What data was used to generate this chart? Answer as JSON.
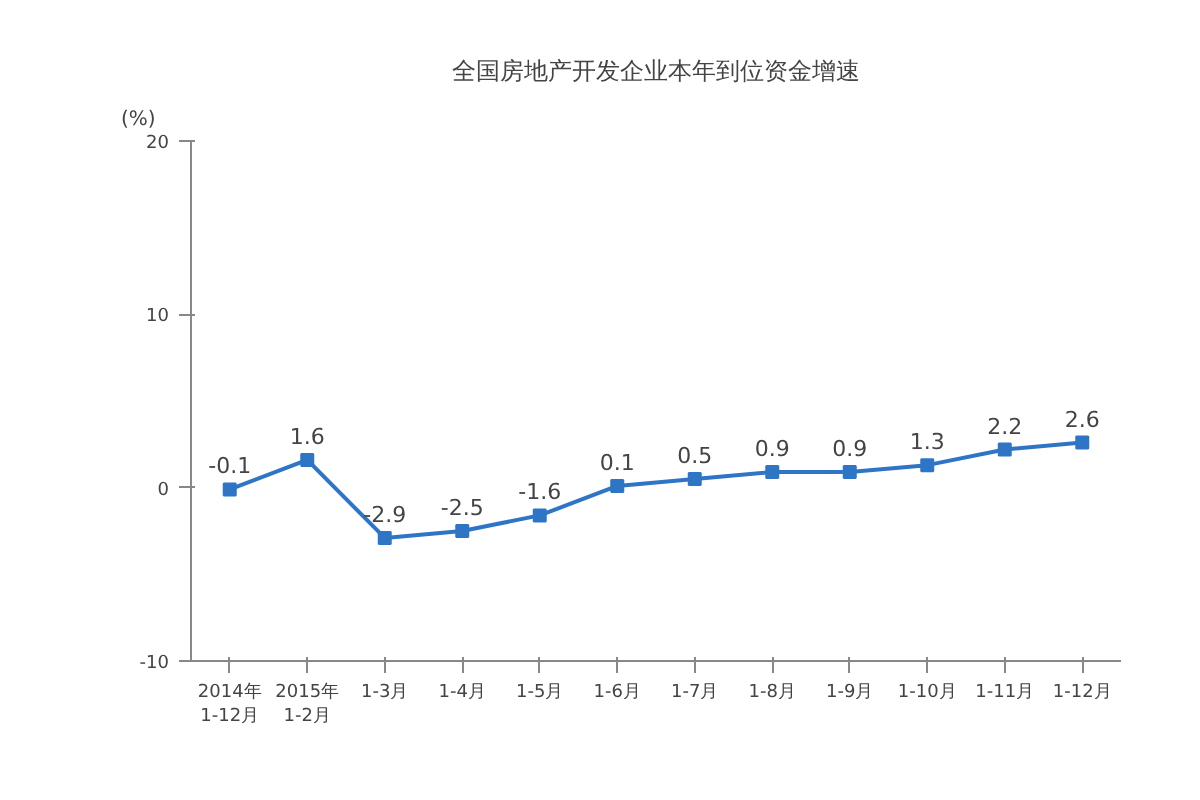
{
  "chart_data": {
    "type": "line",
    "title": "全国房地产开发企业本年到位资金增速",
    "ylabel": "(%)",
    "categories": [
      "2014年\n1-12月",
      "2015年\n1-2月",
      "1-3月",
      "1-4月",
      "1-5月",
      "1-6月",
      "1-7月",
      "1-8月",
      "1-9月",
      "1-10月",
      "1-11月",
      "1-12月"
    ],
    "series": [
      {
        "color": "#2e75c6",
        "values": [
          -0.1,
          1.6,
          -2.9,
          -2.5,
          -1.6,
          0.1,
          0.5,
          0.9,
          0.9,
          1.3,
          2.2,
          2.6
        ]
      }
    ],
    "ylim": [
      -10,
      20
    ],
    "yticks": [
      -10,
      0,
      10,
      20
    ],
    "grid": false,
    "marker": "square",
    "line_style": "solid",
    "data_labels": true
  }
}
